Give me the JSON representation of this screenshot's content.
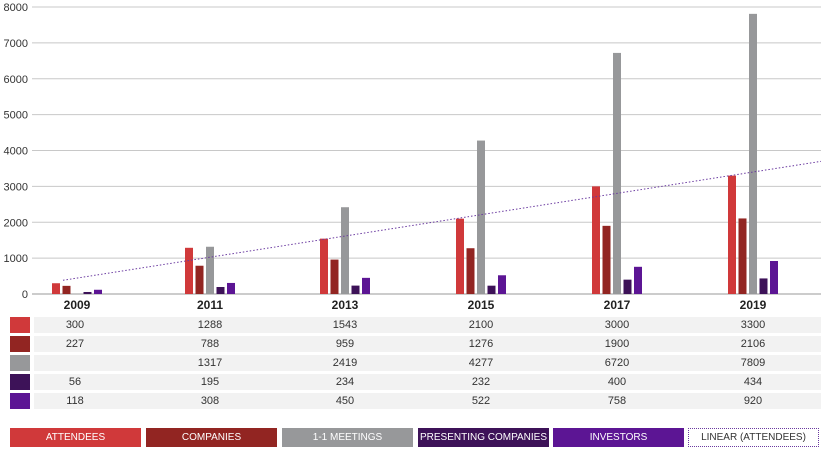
{
  "chart_data": {
    "type": "bar",
    "categories": [
      "2009",
      "2011",
      "2013",
      "2015",
      "2017",
      "2019"
    ],
    "ylim": [
      0,
      8000
    ],
    "yticks": [
      0,
      1000,
      2000,
      3000,
      4000,
      5000,
      6000,
      7000,
      8000
    ],
    "grid": true,
    "legend_placement": "bottom",
    "series": [
      {
        "name": "ATTENDEES",
        "color": "#d0393a",
        "values": [
          300,
          1288,
          1543,
          2100,
          3000,
          3300
        ]
      },
      {
        "name": "COMPANIES",
        "color": "#922522",
        "values": [
          227,
          788,
          959,
          1276,
          1900,
          2106
        ]
      },
      {
        "name": "1-1 MEETINGS",
        "color": "#97989a",
        "values": [
          null,
          1317,
          2419,
          4277,
          6720,
          7809
        ]
      },
      {
        "name": "PRESENTING COMPANIES",
        "color": "#3d1258",
        "values": [
          56,
          195,
          234,
          232,
          400,
          434
        ]
      },
      {
        "name": "INVESTORS",
        "color": "#5c1594",
        "values": [
          118,
          308,
          450,
          522,
          758,
          920
        ]
      }
    ],
    "trendline": {
      "name": "LINEAR (ATTENDEES)",
      "color": "#6a3aa0",
      "style": "dotted"
    }
  }
}
